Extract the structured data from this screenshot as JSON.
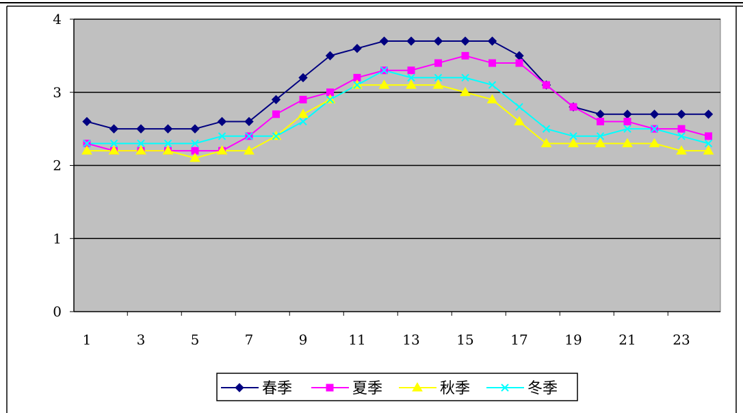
{
  "chart_data": {
    "type": "line",
    "x": [
      1,
      2,
      3,
      4,
      5,
      6,
      7,
      8,
      9,
      10,
      11,
      12,
      13,
      14,
      15,
      16,
      17,
      18,
      19,
      20,
      21,
      22,
      23,
      24
    ],
    "x_tick_labels": [
      "1",
      "3",
      "5",
      "7",
      "9",
      "11",
      "13",
      "15",
      "17",
      "19",
      "21",
      "23"
    ],
    "y_tick_labels": [
      "0",
      "1",
      "2",
      "3",
      "4"
    ],
    "ylim": [
      0,
      4
    ],
    "xlim": [
      1,
      24
    ],
    "grid": "horizontal",
    "plot_background": "#c0c0c0",
    "legend_position": "bottom",
    "series": [
      {
        "name": "春季",
        "color": "#000080",
        "marker": "diamond",
        "values": [
          2.6,
          2.5,
          2.5,
          2.5,
          2.5,
          2.6,
          2.6,
          2.9,
          3.2,
          3.5,
          3.6,
          3.7,
          3.7,
          3.7,
          3.7,
          3.7,
          3.5,
          3.1,
          2.8,
          2.7,
          2.7,
          2.7,
          2.7,
          2.7
        ]
      },
      {
        "name": "夏季",
        "color": "#ff00ff",
        "marker": "square",
        "values": [
          2.3,
          2.2,
          2.2,
          2.2,
          2.2,
          2.2,
          2.4,
          2.7,
          2.9,
          3.0,
          3.2,
          3.3,
          3.3,
          3.4,
          3.5,
          3.4,
          3.4,
          3.1,
          2.8,
          2.6,
          2.6,
          2.5,
          2.5,
          2.4
        ]
      },
      {
        "name": "秋季",
        "color": "#ffff00",
        "marker": "triangle",
        "values": [
          2.2,
          2.2,
          2.2,
          2.2,
          2.1,
          2.2,
          2.2,
          2.4,
          2.7,
          2.9,
          3.1,
          3.1,
          3.1,
          3.1,
          3.0,
          2.9,
          2.6,
          2.3,
          2.3,
          2.3,
          2.3,
          2.3,
          2.2,
          2.2
        ]
      },
      {
        "name": "冬季",
        "color": "#00ffff",
        "marker": "x",
        "values": [
          2.3,
          2.3,
          2.3,
          2.3,
          2.3,
          2.4,
          2.4,
          2.4,
          2.6,
          2.9,
          3.1,
          3.3,
          3.2,
          3.2,
          3.2,
          3.1,
          2.8,
          2.5,
          2.4,
          2.4,
          2.5,
          2.5,
          2.4,
          2.3
        ]
      }
    ]
  }
}
